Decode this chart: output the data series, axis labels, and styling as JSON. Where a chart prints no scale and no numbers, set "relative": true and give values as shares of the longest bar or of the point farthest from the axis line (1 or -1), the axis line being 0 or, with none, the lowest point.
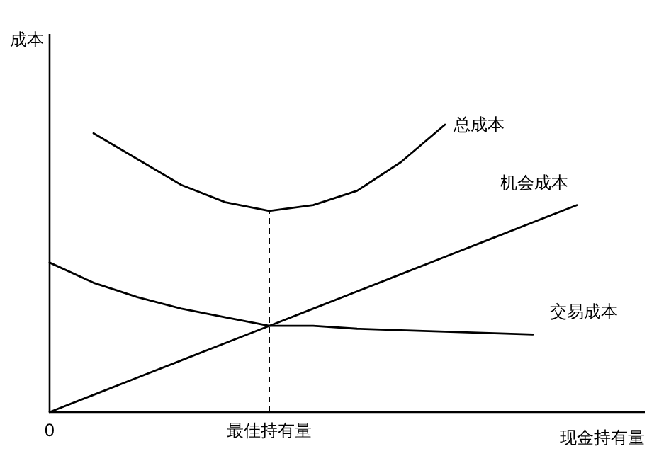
{
  "chart_data": {
    "type": "line",
    "relative": true,
    "xlabel": "现金持有量",
    "ylabel": "成本",
    "line_style": "solid",
    "marker": "none",
    "categories": [
      "0",
      null,
      null,
      null,
      null,
      "最佳持有量",
      null,
      null,
      null,
      null,
      null,
      null,
      null
    ],
    "series": [
      {
        "name": "总成本",
        "color": "#000000",
        "values": [
          null,
          0.97,
          0.88,
          0.79,
          0.73,
          0.7,
          0.72,
          0.77,
          0.87,
          1.0,
          null,
          null,
          null
        ]
      },
      {
        "name": "机会成本",
        "color": "#000000",
        "values": [
          0,
          0.06,
          0.12,
          0.18,
          0.24,
          0.3,
          0.36,
          0.42,
          0.48,
          0.54,
          0.6,
          0.66,
          0.72
        ]
      },
      {
        "name": "交易成本",
        "color": "#000000",
        "values": [
          0.52,
          0.45,
          0.4,
          0.36,
          0.33,
          0.3,
          0.3,
          0.29,
          0.285,
          0.28,
          0.275,
          0.27,
          null
        ]
      }
    ],
    "ref_lines": [
      {
        "axis": "x",
        "value": "最佳持有量",
        "line_style": "dashed"
      }
    ]
  }
}
